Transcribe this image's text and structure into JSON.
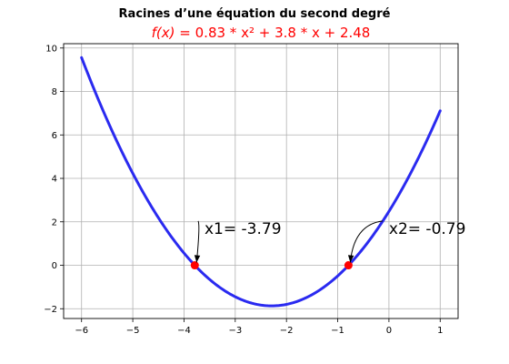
{
  "chart_data": {
    "type": "line",
    "title": "Racines d’une équation du second degré",
    "subtitle": {
      "lhs": "f(x)",
      "rhs": " = 0.83 * x² + 3.8 * x + 2.48",
      "color": "#ff0000"
    },
    "coefficients": {
      "a": 0.83,
      "b": 3.8,
      "c": 2.48
    },
    "xlim": [
      -6.35,
      1.35
    ],
    "ylim": [
      -2.45,
      10.2
    ],
    "x_domain": [
      -6,
      1
    ],
    "x_ticks": [
      -6,
      -5,
      -4,
      -3,
      -2,
      -1,
      0,
      1
    ],
    "y_ticks": [
      -2,
      0,
      2,
      4,
      6,
      8,
      10
    ],
    "x_tick_labels": [
      "−6",
      "−5",
      "−4",
      "−3",
      "−2",
      "−1",
      "0",
      "1"
    ],
    "y_tick_labels": [
      "−2",
      "0",
      "2",
      "4",
      "6",
      "8",
      "10"
    ],
    "grid": true,
    "series": [
      {
        "color": "#2a2af0",
        "x_range": [
          -6,
          1
        ]
      }
    ],
    "roots": [
      {
        "x": -3.79,
        "y": 0,
        "label": "x1= -3.79",
        "text_x": -3.6,
        "text_y": 1.45
      },
      {
        "x": -0.79,
        "y": 0,
        "label": "x2= -0.79",
        "text_x": 0.0,
        "text_y": 1.45
      }
    ],
    "root_marker_color": "#ff0000"
  }
}
